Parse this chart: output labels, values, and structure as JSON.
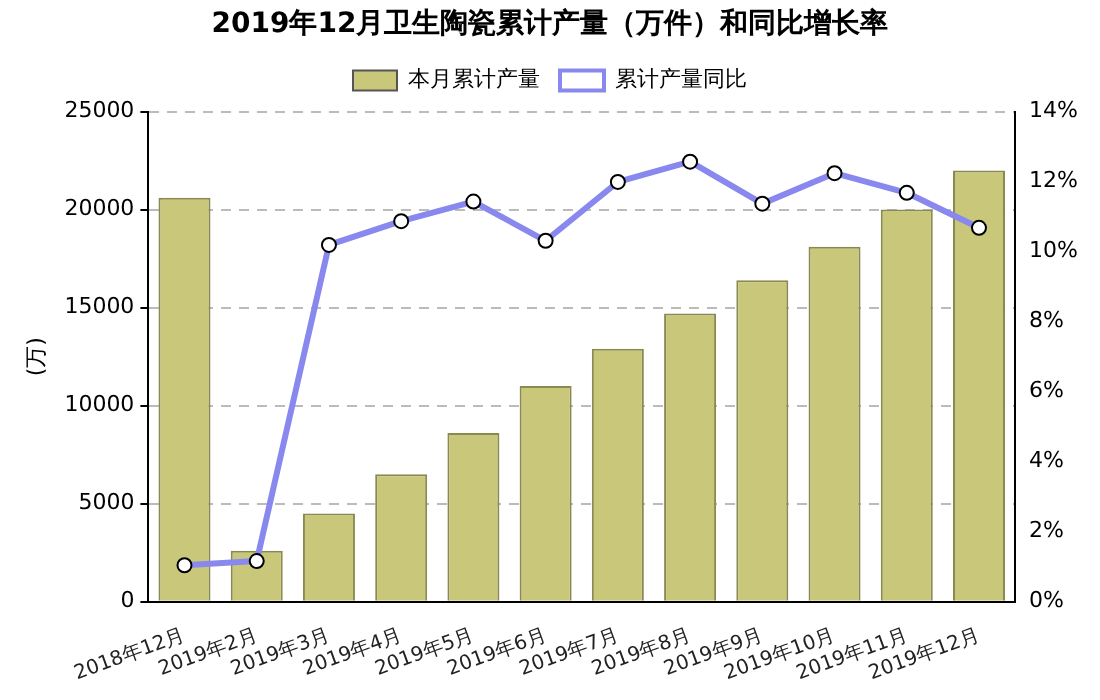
{
  "chart_data": {
    "type": "bar",
    "title": "2019年12月卫生陶瓷累计产量（万件）和同比增长率",
    "ylabel": "(万)",
    "categories": [
      "2018年12月",
      "2019年2月",
      "2019年3月",
      "2019年4月",
      "2019年5月",
      "2019年6月",
      "2019年7月",
      "2019年8月",
      "2019年9月",
      "2019年10月",
      "2019年11月",
      "2019年12月"
    ],
    "series": [
      {
        "name": "本月累计产量",
        "color": "#c8c77a",
        "values": [
          20600,
          2600,
          4500,
          6500,
          8600,
          11000,
          12900,
          14700,
          16400,
          18100,
          20000,
          22000
        ]
      },
      {
        "name": "累计产量同比",
        "type": "line",
        "axis": "y2",
        "color": "#8888ee",
        "marker": "circle",
        "values": [
          1.04,
          1.16,
          10.19,
          10.87,
          11.43,
          10.31,
          11.99,
          12.57,
          11.37,
          12.24,
          11.68,
          10.68
        ]
      }
    ],
    "ylim": [
      0,
      25000
    ],
    "yticks": [
      0,
      5000,
      10000,
      15000,
      20000,
      25000
    ],
    "y2lim": [
      0,
      14
    ],
    "y2ticks": [
      {
        "value": 0,
        "label": "0%"
      },
      {
        "value": 2,
        "label": "2%"
      },
      {
        "value": 4,
        "label": "4%"
      },
      {
        "value": 6,
        "label": "6%"
      },
      {
        "value": 8,
        "label": "8%"
      },
      {
        "value": 10,
        "label": "10%"
      },
      {
        "value": 12,
        "label": "12%"
      },
      {
        "value": 14,
        "label": "14%"
      }
    ],
    "grid": "y",
    "legend": "top"
  }
}
